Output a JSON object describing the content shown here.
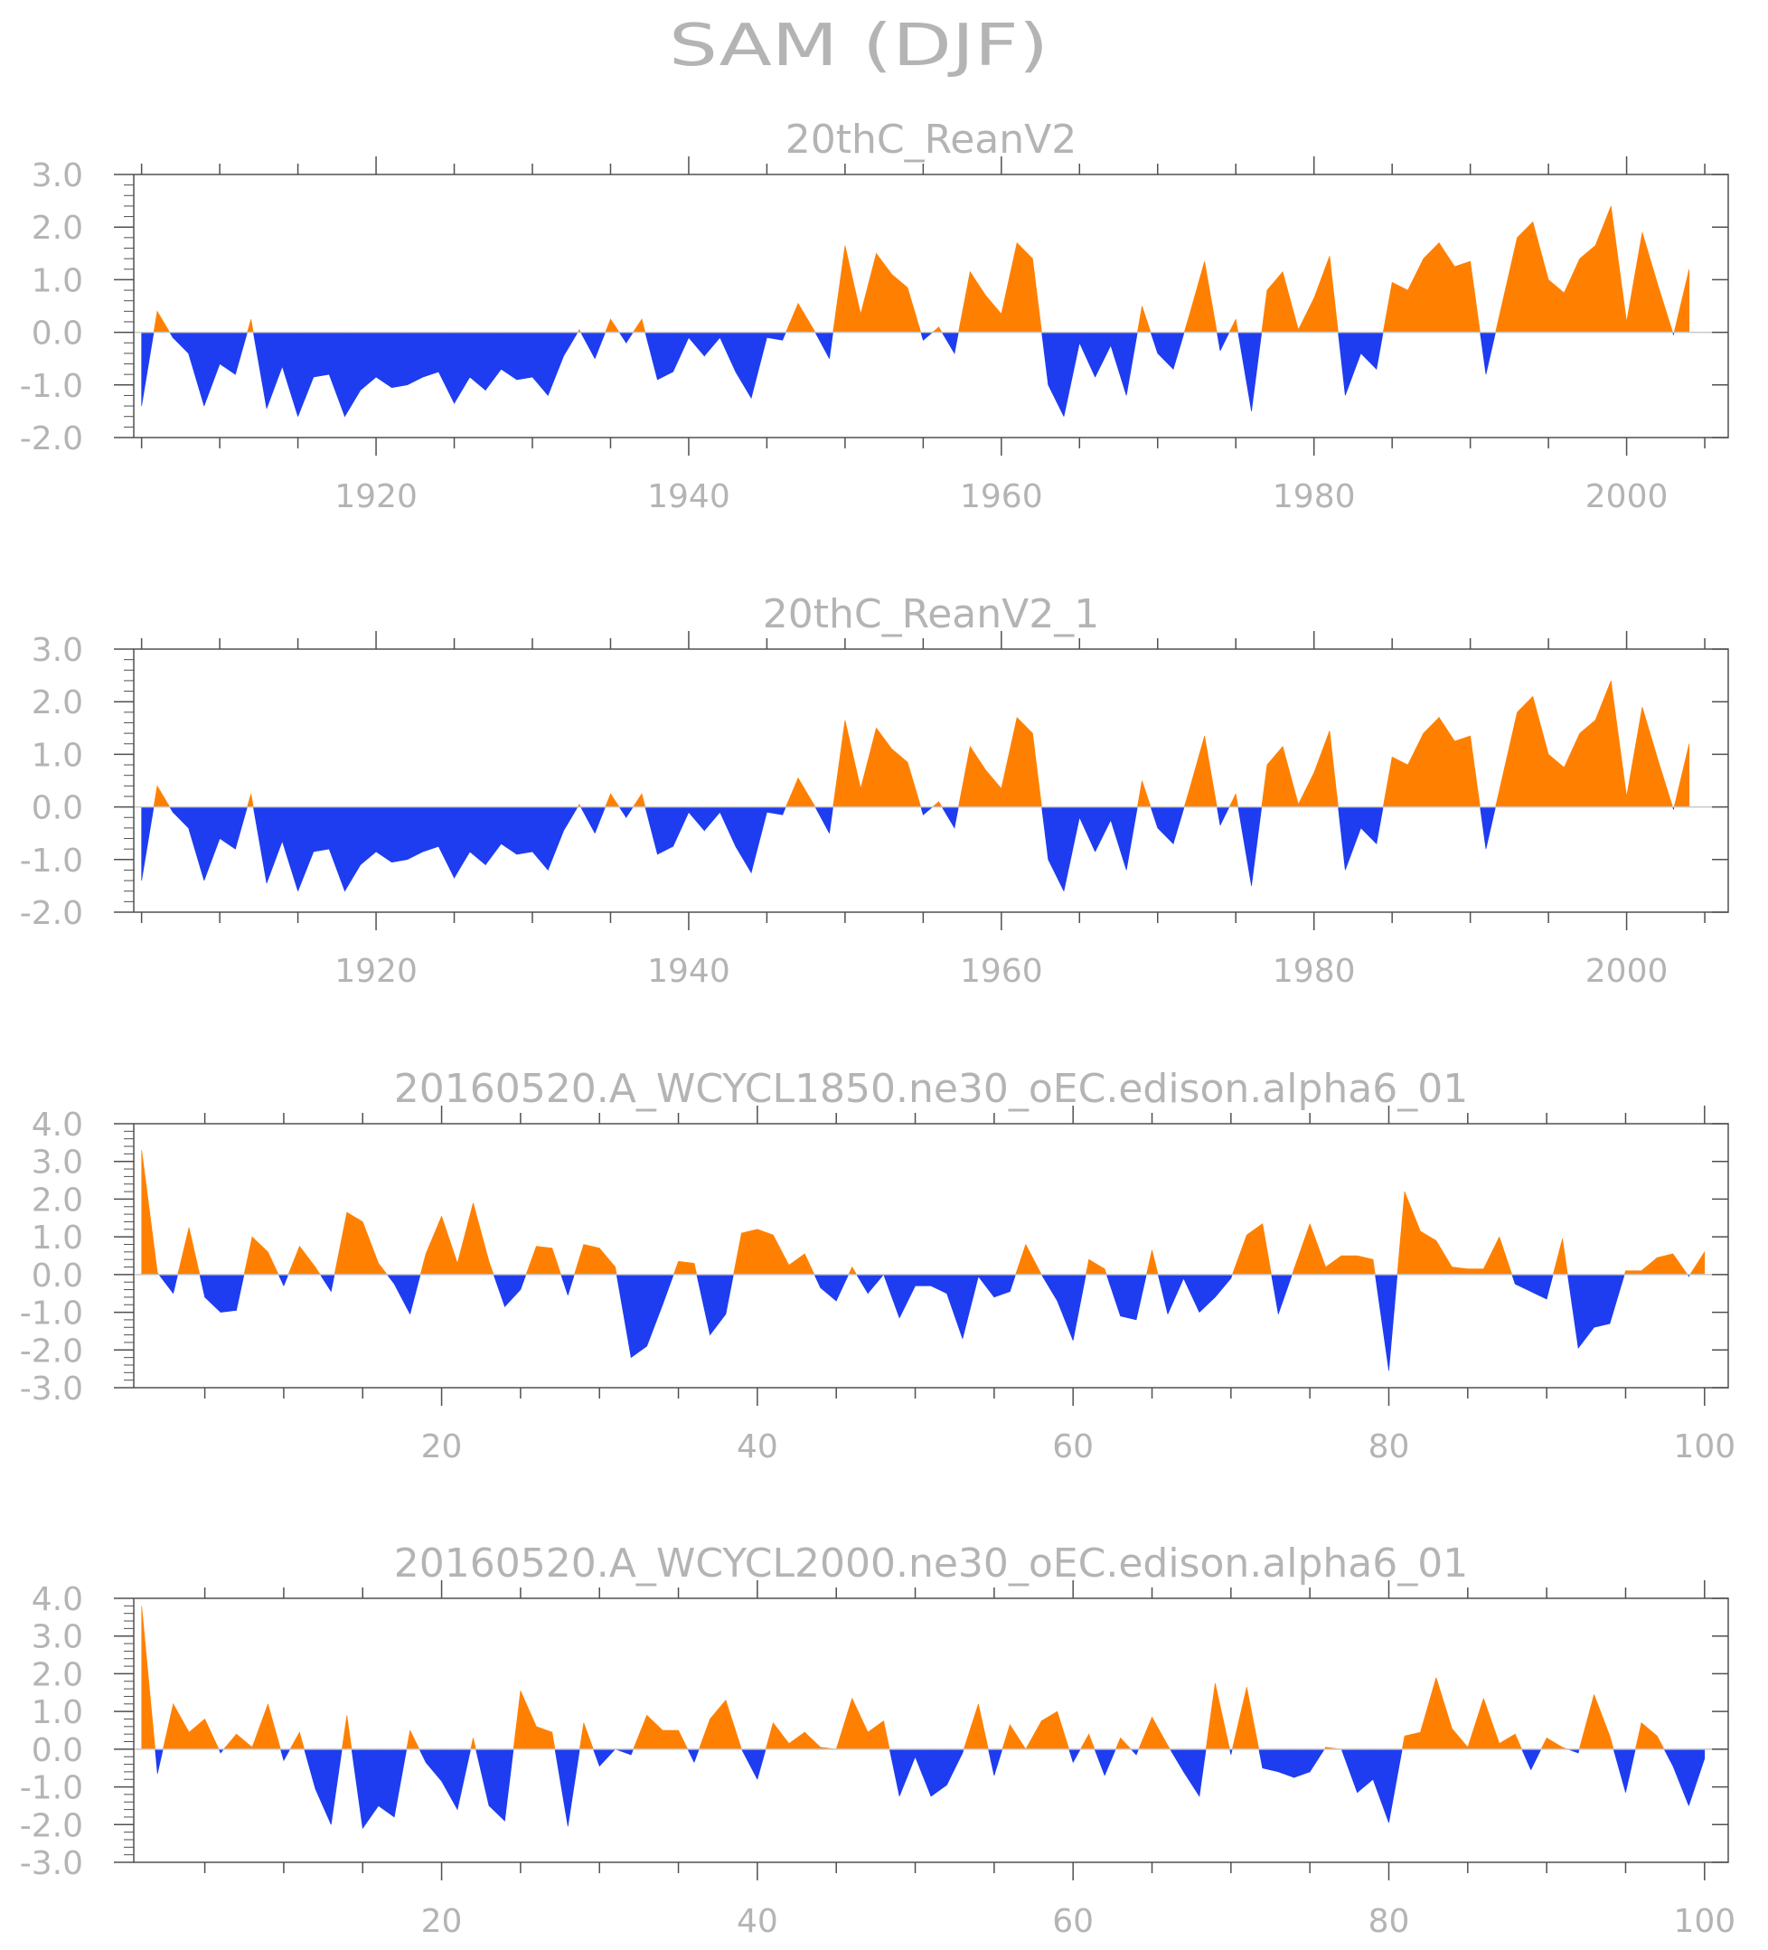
{
  "figure": {
    "title": "SAM (DJF)"
  },
  "colors": {
    "positive": "#ff8000",
    "negative": "#1e3cf0",
    "axis": "#505050",
    "text": "#b4b4b4"
  },
  "chart_data": [
    {
      "type": "area",
      "title": "20thC_ReanV2",
      "xlabel": "",
      "ylabel": "",
      "xlim": [
        1904.5,
        2006.5
      ],
      "ylim": [
        -2.0,
        3.0
      ],
      "xticks": [
        1920,
        1940,
        1960,
        1980,
        2000
      ],
      "xtick_labels": [
        "1920",
        "1940",
        "1960",
        "1980",
        "2000"
      ],
      "yticks": [
        -2,
        -1,
        0,
        1,
        2,
        3
      ],
      "ytick_labels": [
        "-2.0",
        "-1.0",
        "0.0",
        "1.0",
        "2.0",
        "3.0"
      ],
      "grid": false,
      "x_start": 1905,
      "values": [
        -1.4,
        0.4,
        -0.1,
        -0.4,
        -1.4,
        -0.6,
        -0.8,
        0.25,
        -1.45,
        -0.65,
        -1.6,
        -0.85,
        -0.8,
        -1.6,
        -1.1,
        -0.85,
        -1.05,
        -1.0,
        -0.85,
        -0.75,
        -1.35,
        -0.85,
        -1.1,
        -0.7,
        -0.9,
        -0.85,
        -1.2,
        -0.45,
        0.05,
        -0.5,
        0.25,
        -0.2,
        0.25,
        -0.9,
        -0.75,
        -0.1,
        -0.45,
        -0.1,
        -0.75,
        -1.25,
        -0.1,
        -0.15,
        0.55,
        0.05,
        -0.5,
        1.65,
        0.35,
        1.5,
        1.1,
        0.85,
        -0.15,
        0.1,
        -0.4,
        1.15,
        0.7,
        0.35,
        1.7,
        1.4,
        -1.0,
        -1.6,
        -0.2,
        -0.85,
        -0.25,
        -1.2,
        0.5,
        -0.4,
        -0.7,
        0.3,
        1.35,
        -0.35,
        0.25,
        -1.5,
        0.8,
        1.15,
        0.05,
        0.65,
        1.45,
        -1.2,
        -0.4,
        -0.7,
        0.95,
        0.8,
        1.4,
        1.7,
        1.25,
        1.35,
        -0.8,
        0.5,
        1.8,
        2.1,
        1.0,
        0.75,
        1.4,
        1.65,
        2.4,
        0.2,
        1.9,
        0.9,
        -0.05,
        1.2
      ]
    },
    {
      "type": "area",
      "title": "20thC_ReanV2_1",
      "xlabel": "",
      "ylabel": "",
      "xlim": [
        1904.5,
        2006.5
      ],
      "ylim": [
        -2.0,
        3.0
      ],
      "xticks": [
        1920,
        1940,
        1960,
        1980,
        2000
      ],
      "xtick_labels": [
        "1920",
        "1940",
        "1960",
        "1980",
        "2000"
      ],
      "yticks": [
        -2,
        -1,
        0,
        1,
        2,
        3
      ],
      "ytick_labels": [
        "-2.0",
        "-1.0",
        "0.0",
        "1.0",
        "2.0",
        "3.0"
      ],
      "grid": false,
      "x_start": 1905,
      "values": [
        -1.4,
        0.4,
        -0.1,
        -0.4,
        -1.4,
        -0.6,
        -0.8,
        0.25,
        -1.45,
        -0.65,
        -1.6,
        -0.85,
        -0.8,
        -1.6,
        -1.1,
        -0.85,
        -1.05,
        -1.0,
        -0.85,
        -0.75,
        -1.35,
        -0.85,
        -1.1,
        -0.7,
        -0.9,
        -0.85,
        -1.2,
        -0.45,
        0.05,
        -0.5,
        0.25,
        -0.2,
        0.25,
        -0.9,
        -0.75,
        -0.1,
        -0.45,
        -0.1,
        -0.75,
        -1.25,
        -0.1,
        -0.15,
        0.55,
        0.05,
        -0.5,
        1.65,
        0.35,
        1.5,
        1.1,
        0.85,
        -0.15,
        0.1,
        -0.4,
        1.15,
        0.7,
        0.35,
        1.7,
        1.4,
        -1.0,
        -1.6,
        -0.2,
        -0.85,
        -0.25,
        -1.2,
        0.5,
        -0.4,
        -0.7,
        0.3,
        1.35,
        -0.35,
        0.25,
        -1.5,
        0.8,
        1.15,
        0.05,
        0.65,
        1.45,
        -1.2,
        -0.4,
        -0.7,
        0.95,
        0.8,
        1.4,
        1.7,
        1.25,
        1.35,
        -0.8,
        0.5,
        1.8,
        2.1,
        1.0,
        0.75,
        1.4,
        1.65,
        2.4,
        0.2,
        1.9,
        0.9,
        -0.05,
        1.2
      ]
    },
    {
      "type": "area",
      "title": "20160520.A_WCYCL1850.ne30_oEC.edison.alpha6_01",
      "xlabel": "",
      "ylabel": "",
      "xlim": [
        0.5,
        101.5
      ],
      "ylim": [
        -3.0,
        4.0
      ],
      "xticks": [
        20,
        40,
        60,
        80,
        100
      ],
      "xtick_labels": [
        "20",
        "40",
        "60",
        "80",
        "100"
      ],
      "yticks": [
        -3,
        -2,
        -1,
        0,
        1,
        2,
        3,
        4
      ],
      "ytick_labels": [
        "-3.0",
        "-2.0",
        "-1.0",
        "0.0",
        "1.0",
        "2.0",
        "3.0",
        "4.0"
      ],
      "grid": false,
      "x_start": 1,
      "values": [
        3.3,
        0.05,
        -0.5,
        1.25,
        -0.6,
        -1.0,
        -0.95,
        1.0,
        0.6,
        -0.3,
        0.75,
        0.2,
        -0.45,
        1.65,
        1.4,
        0.3,
        -0.25,
        -1.05,
        0.55,
        1.55,
        0.3,
        1.9,
        0.35,
        -0.85,
        -0.4,
        0.75,
        0.7,
        -0.55,
        0.8,
        0.7,
        0.2,
        -2.2,
        -1.9,
        -0.8,
        0.35,
        0.3,
        -1.6,
        -1.05,
        1.1,
        1.2,
        1.05,
        0.25,
        0.55,
        -0.35,
        -0.7,
        0.2,
        -0.5,
        0.0,
        -1.15,
        -0.3,
        -0.3,
        -0.5,
        -1.7,
        -0.05,
        -0.6,
        -0.45,
        0.8,
        0.0,
        -0.7,
        -1.75,
        0.4,
        0.15,
        -1.1,
        -1.2,
        0.65,
        -1.05,
        -0.1,
        -1.0,
        -0.6,
        -0.1,
        1.05,
        1.35,
        -1.05,
        0.15,
        1.35,
        0.2,
        0.5,
        0.5,
        0.4,
        -2.55,
        2.2,
        1.15,
        0.9,
        0.2,
        0.15,
        0.15,
        1.0,
        -0.25,
        -0.45,
        -0.65,
        0.95,
        -1.95,
        -1.4,
        -1.3,
        0.1,
        0.1,
        0.45,
        0.55,
        -0.05,
        0.6
      ]
    },
    {
      "type": "area",
      "title": "20160520.A_WCYCL2000.ne30_oEC.edison.alpha6_01",
      "xlabel": "",
      "ylabel": "",
      "xlim": [
        0.5,
        101.5
      ],
      "ylim": [
        -3.0,
        4.0
      ],
      "xticks": [
        20,
        40,
        60,
        80,
        100
      ],
      "xtick_labels": [
        "20",
        "40",
        "60",
        "80",
        "100"
      ],
      "yticks": [
        -3,
        -2,
        -1,
        0,
        1,
        2,
        3,
        4
      ],
      "ytick_labels": [
        "-3.0",
        "-2.0",
        "-1.0",
        "0.0",
        "1.0",
        "2.0",
        "3.0",
        "4.0"
      ],
      "grid": false,
      "x_start": 1,
      "values": [
        3.8,
        -0.65,
        1.2,
        0.45,
        0.8,
        -0.1,
        0.4,
        0.05,
        1.2,
        -0.3,
        0.45,
        -1.05,
        -2.0,
        0.9,
        -2.1,
        -1.5,
        -1.8,
        0.5,
        -0.35,
        -0.85,
        -1.6,
        0.3,
        -1.5,
        -1.9,
        1.55,
        0.6,
        0.45,
        -2.05,
        0.7,
        -0.45,
        0.0,
        -0.15,
        0.9,
        0.5,
        0.5,
        -0.35,
        0.8,
        1.3,
        0.0,
        -0.8,
        0.7,
        0.15,
        0.45,
        0.05,
        0.0,
        1.35,
        0.45,
        0.75,
        -1.25,
        -0.2,
        -1.25,
        -0.95,
        -0.1,
        1.2,
        -0.7,
        0.65,
        0.0,
        0.75,
        1.0,
        -0.35,
        0.4,
        -0.7,
        0.3,
        -0.15,
        0.85,
        0.1,
        -0.6,
        -1.25,
        1.75,
        -0.15,
        1.65,
        -0.5,
        -0.6,
        -0.75,
        -0.6,
        0.05,
        0.0,
        -1.15,
        -0.8,
        -1.95,
        0.35,
        0.45,
        1.9,
        0.55,
        0.05,
        1.35,
        0.15,
        0.4,
        -0.55,
        0.3,
        0.05,
        -0.1,
        1.45,
        0.35,
        -1.15,
        0.7,
        0.35,
        -0.45,
        -1.5,
        -0.25
      ]
    }
  ]
}
